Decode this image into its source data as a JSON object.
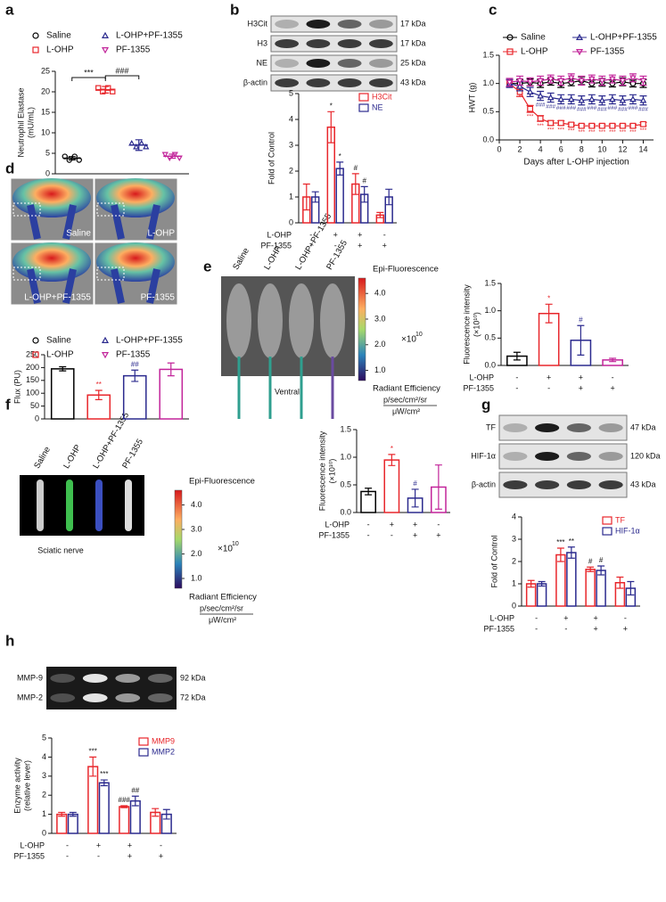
{
  "panels": [
    "a",
    "b",
    "c",
    "d",
    "e",
    "f",
    "g",
    "h"
  ],
  "blots": {
    "b": {
      "rows": [
        {
          "label": "H3Cit",
          "size": "17 kDa"
        },
        {
          "label": "H3",
          "size": "17 kDa"
        },
        {
          "label": "NE",
          "size": "25 kDa"
        },
        {
          "label": "β-actin",
          "size": "43 kDa"
        }
      ]
    },
    "g": {
      "rows": [
        {
          "label": "TF",
          "size": "47 kDa"
        },
        {
          "label": "HIF-1α",
          "size": "120 kDa"
        },
        {
          "label": "β-actin",
          "size": "43 kDa"
        }
      ]
    },
    "h": {
      "rows": [
        {
          "label": "MMP-9",
          "size": "92 kDa"
        },
        {
          "label": "MMP-2",
          "size": "72 kDa"
        }
      ]
    }
  },
  "images": {
    "d": {
      "labels": [
        "Saline",
        "L-OHP",
        "L-OHP+PF-1355",
        "PF-1355"
      ]
    },
    "e": {
      "labels": [
        "Saline",
        "L-OHP",
        "L-OHP+PF-1355",
        "PF-1355"
      ],
      "caption": "Ventral",
      "colorbar": {
        "title": "Epi-Fluorescence",
        "lim": [
          0.6,
          4.6
        ],
        "ticks": [
          {
            "value": 4,
            "label": "4.0"
          },
          {
            "value": 3,
            "label": "3.0"
          },
          {
            "value": 2,
            "label": "2.0"
          },
          {
            "value": 1,
            "label": "1.0"
          }
        ],
        "scale": "×10",
        "exponent": "10",
        "unit_title": "Radiant Efficiency",
        "unit_num": "p/sec/cm²/sr",
        "unit_den": "μW/cm²"
      }
    },
    "f": {
      "labels": [
        "Saline",
        "L-OHP",
        "L-OHP+PF-1355",
        "PF-1355"
      ],
      "caption": "Sciatic nerve",
      "colorbar": {
        "title": "Epi-Fluorescence",
        "lim": [
          0.6,
          4.6
        ],
        "ticks": [
          {
            "value": 4,
            "label": "4.0"
          },
          {
            "value": 3,
            "label": "3.0"
          },
          {
            "value": 2,
            "label": "2.0"
          },
          {
            "value": 1,
            "label": "1.0"
          }
        ],
        "scale": "×10",
        "exponent": "10",
        "unit_title": "Radiant Efficiency",
        "unit_num": "p/sec/cm²/sr",
        "unit_den": "μW/cm²"
      }
    }
  },
  "chart_data": [
    {
      "type": "dot",
      "ylabel": "Neutrophil Elastase",
      "ylabel_unit": "(mU/mL)",
      "categories": [
        "Saline",
        "L-OHP",
        "L-OHP+PF-1355",
        "PF-1355"
      ],
      "values": [
        3.8,
        20.5,
        7.0,
        4.3
      ],
      "errors": [
        0.4,
        0.8,
        1.3,
        0.5
      ],
      "colors": [
        "#000000",
        "#e8262b",
        "#2b2a8e",
        "#c2249a"
      ],
      "markers": [
        "circle",
        "square",
        "triangle",
        "triangle-down"
      ],
      "ylim": [
        0,
        25
      ],
      "yticks": [
        0,
        5,
        10,
        15,
        20,
        25
      ],
      "legend": "top",
      "comparisons": [
        {
          "label": "***",
          "pair": [
            0,
            1
          ]
        },
        {
          "label": "###",
          "pair": [
            1,
            2
          ]
        }
      ]
    },
    {
      "type": "grouped_bar",
      "ylabel": "Fold of Control",
      "ylim": [
        0,
        5
      ],
      "yticks": [
        0,
        1,
        2,
        3,
        4,
        5
      ],
      "legend": "top-right",
      "condition_rows": [
        {
          "label": "L-OHP",
          "signs": [
            "-",
            "+",
            "+",
            "-"
          ]
        },
        {
          "label": "PF-1355",
          "signs": [
            "-",
            "-",
            "+",
            "+"
          ]
        }
      ],
      "series": [
        {
          "name": "H3Cit",
          "color": "#e8262b",
          "values": [
            1.0,
            3.7,
            1.5,
            0.3
          ],
          "errors": [
            0.5,
            0.6,
            0.4,
            0.1
          ],
          "sig": [
            null,
            "*",
            "#",
            null
          ]
        },
        {
          "name": "NE",
          "color": "#2b2a8e",
          "values": [
            1.0,
            2.1,
            1.1,
            1.0
          ],
          "errors": [
            0.2,
            0.25,
            0.3,
            0.3
          ],
          "sig": [
            null,
            "*",
            "#",
            null
          ]
        }
      ]
    },
    {
      "type": "line",
      "xlabel": "Days after L-OHP injection",
      "ylabel": "HWT (g)",
      "legend": "top",
      "x": [
        1,
        2,
        3,
        4,
        5,
        6,
        7,
        8,
        9,
        10,
        11,
        12,
        13,
        14
      ],
      "xlim": [
        0,
        15
      ],
      "xticks": [
        0,
        2,
        4,
        6,
        8,
        10,
        12,
        14
      ],
      "ylim": [
        0,
        1.5
      ],
      "yticks": [
        {
          "value": 0,
          "label": "0.0"
        },
        {
          "value": 0.5,
          "label": "0.5"
        },
        {
          "value": 1,
          "label": "1.0"
        },
        {
          "value": 1.5,
          "label": "1.5"
        }
      ],
      "series": [
        {
          "name": "Saline",
          "color": "#000000",
          "marker": "circle",
          "values": [
            1.0,
            1.0,
            1.02,
            1.0,
            1.03,
            1.0,
            1.02,
            1.05,
            1.0,
            1.02,
            1.0,
            1.03,
            1.0,
            1.0
          ],
          "errors": [
            0.06,
            0.07,
            0.06,
            0.07,
            0.06,
            0.07,
            0.06,
            0.07,
            0.06,
            0.07,
            0.06,
            0.07,
            0.06,
            0.07
          ],
          "sig": [
            null,
            null,
            null,
            null,
            null,
            null,
            null,
            null,
            null,
            null,
            null,
            null,
            null,
            null
          ]
        },
        {
          "name": "L-OHP",
          "color": "#e8262b",
          "marker": "square",
          "values": [
            1.0,
            0.85,
            0.55,
            0.38,
            0.3,
            0.3,
            0.27,
            0.25,
            0.25,
            0.25,
            0.25,
            0.25,
            0.25,
            0.28
          ],
          "errors": [
            0.06,
            0.08,
            0.06,
            0.05,
            0.04,
            0.04,
            0.03,
            0.03,
            0.03,
            0.03,
            0.03,
            0.03,
            0.03,
            0.03
          ],
          "sig": [
            null,
            null,
            "***",
            "***",
            "***",
            "***",
            "***",
            "***",
            "***",
            "***",
            "***",
            "***",
            "***",
            "***"
          ]
        },
        {
          "name": "L-OHP+PF-1355",
          "color": "#2b2a8e",
          "marker": "triangle",
          "values": [
            1.0,
            0.95,
            0.85,
            0.78,
            0.75,
            0.72,
            0.72,
            0.7,
            0.72,
            0.7,
            0.72,
            0.7,
            0.72,
            0.7
          ],
          "errors": [
            0.07,
            0.08,
            0.08,
            0.08,
            0.08,
            0.08,
            0.08,
            0.08,
            0.08,
            0.08,
            0.08,
            0.08,
            0.08,
            0.08
          ],
          "sig": [
            null,
            null,
            null,
            "###",
            "###",
            "###",
            "###",
            "###",
            "###",
            "###",
            "###",
            "###",
            "###",
            "###"
          ]
        },
        {
          "name": "PF-1355",
          "color": "#c2249a",
          "marker": "triangle-down",
          "values": [
            1.02,
            1.05,
            1.03,
            1.05,
            1.08,
            1.05,
            1.1,
            1.05,
            1.08,
            1.05,
            1.08,
            1.05,
            1.1,
            1.05
          ],
          "errors": [
            0.07,
            0.08,
            0.07,
            0.08,
            0.07,
            0.08,
            0.07,
            0.08,
            0.07,
            0.08,
            0.07,
            0.08,
            0.07,
            0.08
          ],
          "sig": [
            null,
            null,
            null,
            null,
            null,
            null,
            null,
            null,
            null,
            null,
            null,
            null,
            null,
            null
          ]
        }
      ]
    },
    {
      "type": "bar",
      "ylabel": "Flux (PU)",
      "legend": "top",
      "categories": [
        "Saline",
        "L-OHP",
        "L-OHP+PF-1355",
        "PF-1355"
      ],
      "values": [
        195,
        93,
        168,
        193
      ],
      "errors": [
        8,
        18,
        22,
        25
      ],
      "sig": [
        null,
        "**",
        "##",
        null
      ],
      "colors": [
        "#000000",
        "#e8262b",
        "#2b2a8e",
        "#c2249a"
      ],
      "markers": [
        "circle",
        "square",
        "triangle",
        "triangle-down"
      ],
      "ylim": [
        0,
        250
      ],
      "yticks": [
        0,
        50,
        100,
        150,
        200,
        250
      ]
    },
    {
      "type": "bar",
      "ylabel": "Fluorescence intensity",
      "ylabel_unit": "(×10¹⁰)",
      "values": [
        0.17,
        0.95,
        0.46,
        0.1
      ],
      "errors": [
        0.07,
        0.17,
        0.27,
        0.03
      ],
      "sig": [
        null,
        "*",
        "#",
        null
      ],
      "colors": [
        "#000000",
        "#e8262b",
        "#2b2a8e",
        "#c2249a"
      ],
      "ylim": [
        0,
        1.5
      ],
      "yticks": [
        {
          "value": 0,
          "label": "0.0"
        },
        {
          "value": 0.5,
          "label": "0.5"
        },
        {
          "value": 1,
          "label": "1.0"
        },
        {
          "value": 1.5,
          "label": "1.5"
        }
      ],
      "condition_rows": [
        {
          "label": "L-OHP",
          "signs": [
            "-",
            "+",
            "+",
            "-"
          ]
        },
        {
          "label": "PF-1355",
          "signs": [
            "-",
            "-",
            "+",
            "+"
          ]
        }
      ]
    },
    {
      "type": "bar",
      "ylabel": "Fluorescence intensity",
      "ylabel_unit": "(×10¹⁰)",
      "values": [
        0.38,
        0.95,
        0.26,
        0.46
      ],
      "errors": [
        0.06,
        0.1,
        0.16,
        0.4
      ],
      "sig": [
        null,
        "*",
        "#",
        null
      ],
      "colors": [
        "#000000",
        "#e8262b",
        "#2b2a8e",
        "#c2249a"
      ],
      "ylim": [
        0,
        1.5
      ],
      "yticks": [
        {
          "value": 0,
          "label": "0.0"
        },
        {
          "value": 0.5,
          "label": "0.5"
        },
        {
          "value": 1,
          "label": "1.0"
        },
        {
          "value": 1.5,
          "label": "1.5"
        }
      ],
      "condition_rows": [
        {
          "label": "L-OHP",
          "signs": [
            "-",
            "+",
            "+",
            "-"
          ]
        },
        {
          "label": "PF-1355",
          "signs": [
            "-",
            "-",
            "+",
            "+"
          ]
        }
      ]
    },
    {
      "type": "grouped_bar",
      "ylabel": "Fold of Control",
      "ylim": [
        0,
        4
      ],
      "yticks": [
        0,
        1,
        2,
        3,
        4
      ],
      "legend": "top-right",
      "condition_rows": [
        {
          "label": "L-OHP",
          "signs": [
            "-",
            "+",
            "+",
            "-"
          ]
        },
        {
          "label": "PF-1355",
          "signs": [
            "-",
            "-",
            "+",
            "+"
          ]
        }
      ],
      "series": [
        {
          "name": "TF",
          "color": "#e8262b",
          "values": [
            1.0,
            2.3,
            1.65,
            1.05
          ],
          "errors": [
            0.15,
            0.3,
            0.1,
            0.25
          ],
          "sig": [
            null,
            "***",
            "#",
            null
          ]
        },
        {
          "name": "HIF-1α",
          "color": "#2b2a8e",
          "values": [
            1.0,
            2.4,
            1.6,
            0.8
          ],
          "errors": [
            0.1,
            0.25,
            0.2,
            0.3
          ],
          "sig": [
            null,
            "**",
            "#",
            null
          ]
        }
      ]
    },
    {
      "type": "grouped_bar",
      "ylabel": "Enzyme activity",
      "ylabel_unit": "(relative lever)",
      "ylim": [
        0,
        5
      ],
      "yticks": [
        0,
        1,
        2,
        3,
        4,
        5
      ],
      "legend": "top-right",
      "condition_rows": [
        {
          "label": "L-OHP",
          "signs": [
            "-",
            "+",
            "+",
            "-"
          ]
        },
        {
          "label": "PF-1355",
          "signs": [
            "-",
            "-",
            "+",
            "+"
          ]
        }
      ],
      "series": [
        {
          "name": "MMP9",
          "color": "#e8262b",
          "values": [
            1.0,
            3.5,
            1.4,
            1.1
          ],
          "errors": [
            0.1,
            0.5,
            0.05,
            0.2
          ],
          "sig": [
            null,
            "***",
            "###",
            null
          ]
        },
        {
          "name": "MMP2",
          "color": "#2b2a8e",
          "values": [
            1.0,
            2.65,
            1.7,
            1.0
          ],
          "errors": [
            0.1,
            0.15,
            0.25,
            0.25
          ],
          "sig": [
            null,
            "***",
            "##",
            null
          ]
        }
      ]
    }
  ]
}
